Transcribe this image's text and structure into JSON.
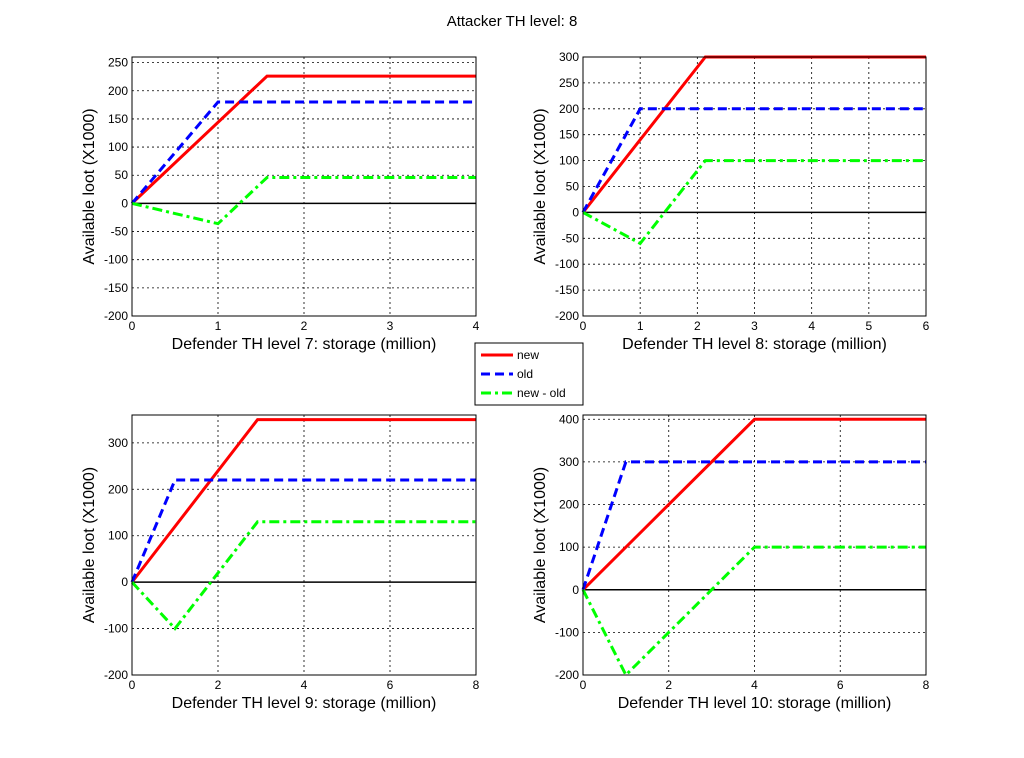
{
  "chart_data": {
    "type": "line",
    "title": "Attacker TH level: 8",
    "legend": {
      "placement": "center",
      "entries": [
        "new",
        "old",
        "new - old"
      ]
    },
    "colors": {
      "new": "#ff0000",
      "old": "#0000ff",
      "new - old": "#00ff00",
      "zero": "#000000"
    },
    "grid": true,
    "subplots": [
      {
        "xlabel": "Defender TH level 7: storage (million)",
        "ylabel": "Available loot (X1000)",
        "xlim": [
          0,
          4
        ],
        "ylim": [
          -200,
          260
        ],
        "xticks": [
          0,
          1,
          2,
          3,
          4
        ],
        "yticks": [
          -200,
          -150,
          -100,
          -50,
          0,
          50,
          100,
          150,
          200,
          250
        ],
        "series": [
          {
            "name": "new",
            "x": [
              0,
              1.57,
              4
            ],
            "y": [
              0,
              226,
              226
            ]
          },
          {
            "name": "old",
            "x": [
              0,
              1,
              4
            ],
            "y": [
              0,
              180,
              180
            ]
          },
          {
            "name": "new - old",
            "x": [
              0,
              1,
              1.57,
              4
            ],
            "y": [
              0,
              -36,
              46,
              46
            ]
          }
        ]
      },
      {
        "xlabel": "Defender TH level 8: storage (million)",
        "ylabel": "Available loot (X1000)",
        "xlim": [
          0,
          6
        ],
        "ylim": [
          -200,
          300
        ],
        "xticks": [
          0,
          1,
          2,
          3,
          4,
          5,
          6
        ],
        "yticks": [
          -200,
          -150,
          -100,
          -50,
          0,
          50,
          100,
          150,
          200,
          250,
          300
        ],
        "series": [
          {
            "name": "new",
            "x": [
              0,
              2.14,
              6
            ],
            "y": [
              0,
              300,
              300
            ]
          },
          {
            "name": "old",
            "x": [
              0,
              1,
              6
            ],
            "y": [
              0,
              200,
              200
            ]
          },
          {
            "name": "new - old",
            "x": [
              0,
              1,
              2.14,
              6
            ],
            "y": [
              0,
              -60,
              100,
              100
            ]
          }
        ]
      },
      {
        "xlabel": "Defender TH level 9: storage (million)",
        "ylabel": "Available loot (X1000)",
        "xlim": [
          0,
          8
        ],
        "ylim": [
          -200,
          360
        ],
        "xticks": [
          0,
          2,
          4,
          6,
          8
        ],
        "yticks": [
          -200,
          -100,
          0,
          100,
          200,
          300
        ],
        "series": [
          {
            "name": "new",
            "x": [
              0,
              2.92,
              8
            ],
            "y": [
              0,
              350,
              350
            ]
          },
          {
            "name": "old",
            "x": [
              0,
              1,
              8
            ],
            "y": [
              0,
              220,
              220
            ]
          },
          {
            "name": "new - old",
            "x": [
              0,
              1,
              2.92,
              8
            ],
            "y": [
              0,
              -100,
              130,
              130
            ]
          }
        ]
      },
      {
        "xlabel": "Defender TH level 10: storage (million)",
        "ylabel": "Available loot (X1000)",
        "xlim": [
          0,
          8
        ],
        "ylim": [
          -200,
          410
        ],
        "xticks": [
          0,
          2,
          4,
          6,
          8
        ],
        "yticks": [
          -200,
          -100,
          0,
          100,
          200,
          300,
          400
        ],
        "series": [
          {
            "name": "new",
            "x": [
              0,
              4,
              8
            ],
            "y": [
              0,
              400,
              400
            ]
          },
          {
            "name": "old",
            "x": [
              0,
              1,
              8
            ],
            "y": [
              0,
              300,
              300
            ]
          },
          {
            "name": "new - old",
            "x": [
              0,
              1,
              4,
              8
            ],
            "y": [
              0,
              -200,
              100,
              100
            ]
          }
        ]
      }
    ]
  }
}
